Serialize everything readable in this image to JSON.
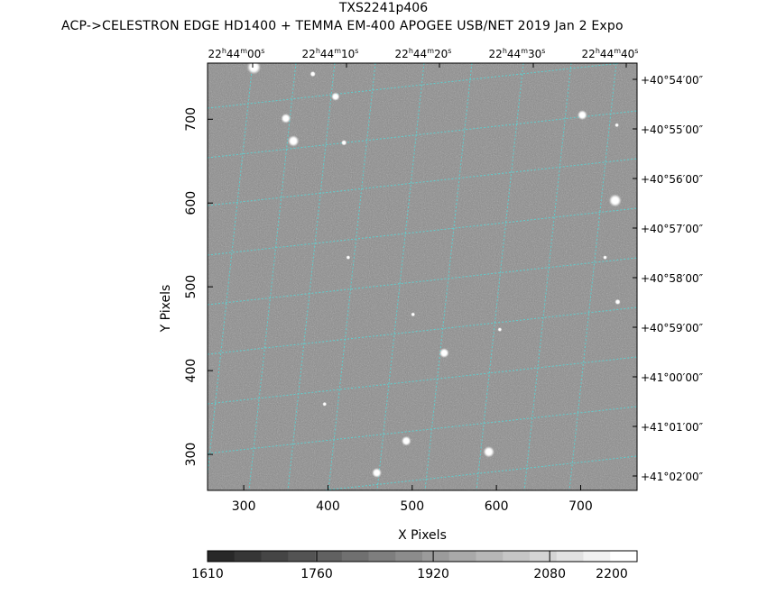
{
  "title": "TXS2241p406",
  "subtitle": "ACP->CELESTRON EDGE HD1400 + TEMMA EM-400 APOGEE USB/NET   2019 Jan  2    Expo",
  "axes": {
    "xlabel": "X Pixels",
    "ylabel": "Y Pixels",
    "x_range": [
      257,
      767
    ],
    "y_range": [
      257,
      767
    ],
    "x_ticks": [
      "300",
      "400",
      "500",
      "600",
      "700"
    ],
    "y_ticks": [
      "300",
      "400",
      "500",
      "600",
      "700"
    ]
  },
  "ra_labels": [
    {
      "h": "22",
      "m": "44",
      "s": "00"
    },
    {
      "h": "22",
      "m": "44",
      "s": "10"
    },
    {
      "h": "22",
      "m": "44",
      "s": "20"
    },
    {
      "h": "22",
      "m": "44",
      "s": "30"
    },
    {
      "h": "22",
      "m": "44",
      "s": "40"
    }
  ],
  "dec_labels": [
    "+40°54′00″",
    "+40°55′00″",
    "+40°56′00″",
    "+40°57′00″",
    "+40°58′00″",
    "+40°59′00″",
    "+41°00′00″",
    "+41°01′00″",
    "+41°02′00″"
  ],
  "colorbar": {
    "min": 1610,
    "max": 2200,
    "ticks": [
      "1610",
      "1760",
      "1920",
      "2080",
      "2200"
    ]
  },
  "colors": {
    "grid": "#5ecfcf",
    "sky": "#8a8a8a",
    "star": "#ffffff"
  },
  "stars": [
    {
      "x": 312,
      "y": 762,
      "r": 5
    },
    {
      "x": 350,
      "y": 701,
      "r": 3.5
    },
    {
      "x": 359,
      "y": 674,
      "r": 4
    },
    {
      "x": 409,
      "y": 727,
      "r": 3
    },
    {
      "x": 382,
      "y": 754,
      "r": 2
    },
    {
      "x": 419,
      "y": 672,
      "r": 2
    },
    {
      "x": 702,
      "y": 705,
      "r": 3.5
    },
    {
      "x": 741,
      "y": 603,
      "r": 4.5
    },
    {
      "x": 538,
      "y": 421,
      "r": 3.5
    },
    {
      "x": 493,
      "y": 316,
      "r": 3.5
    },
    {
      "x": 591,
      "y": 303,
      "r": 4
    },
    {
      "x": 458,
      "y": 278,
      "r": 3.5
    },
    {
      "x": 501,
      "y": 467,
      "r": 1.5
    },
    {
      "x": 424,
      "y": 535,
      "r": 1.5
    },
    {
      "x": 744,
      "y": 482,
      "r": 2
    },
    {
      "x": 729,
      "y": 535,
      "r": 1.5
    },
    {
      "x": 396,
      "y": 360,
      "r": 1.5
    },
    {
      "x": 743,
      "y": 693,
      "r": 1.5
    },
    {
      "x": 604,
      "y": 449,
      "r": 1.5
    }
  ]
}
